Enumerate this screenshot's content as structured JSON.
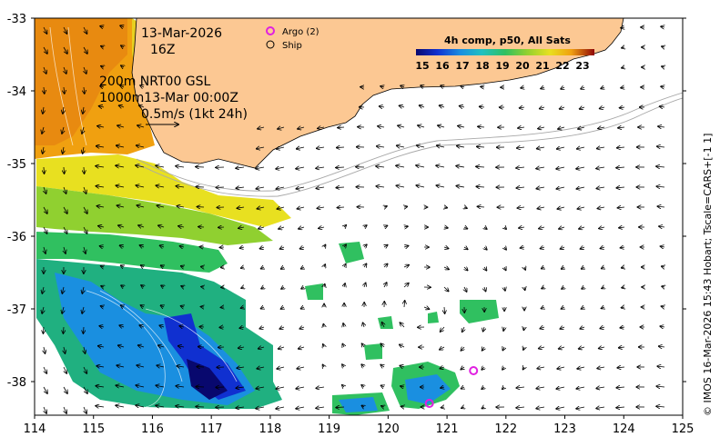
{
  "map": {
    "date": "13-Mar-2026",
    "hour": "16Z",
    "depth_line": "200m  NRT00 GSL",
    "depth_line2": "1000m13-Mar 00:00Z",
    "vector_scale": "0.5m/s (1kt 24h)",
    "credit": "© IMOS 16-Mar-2026 15:43 Hobart; Tscale=CARS+[-1 1]"
  },
  "legend": {
    "argo_label": "Argo (2)",
    "ship_label": "Ship",
    "argo_color": "#e020e0"
  },
  "colorbar": {
    "title": "4h comp, p50, All Sats",
    "ticks": [
      "15",
      "16",
      "17",
      "18",
      "19",
      "20",
      "21",
      "22",
      "23"
    ],
    "colors": [
      "#08086e",
      "#1030d0",
      "#1a8fe0",
      "#20c0c0",
      "#30c060",
      "#90d030",
      "#e8e020",
      "#f0a010",
      "#e05010",
      "#900808"
    ]
  },
  "axes": {
    "x_ticks": [
      "114",
      "115",
      "116",
      "117",
      "118",
      "119",
      "120",
      "121",
      "122",
      "123",
      "124",
      "125"
    ],
    "y_ticks": [
      "-33",
      "-34",
      "-35",
      "-36",
      "-37",
      "-38"
    ],
    "lon_range": [
      114,
      125
    ],
    "lat_range": [
      -38.5,
      -33
    ]
  },
  "argo_floats": [
    {
      "lon": 121.45,
      "lat": -37.85
    },
    {
      "lon": 120.7,
      "lat": -38.3
    }
  ],
  "colors": {
    "land": "#fcc893",
    "ocean": "#ffffff"
  }
}
